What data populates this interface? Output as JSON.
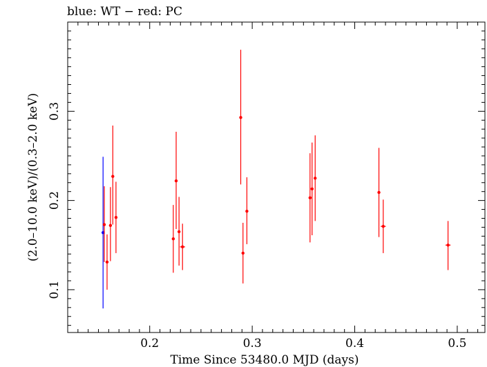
{
  "chart_data": {
    "type": "scatter",
    "title": "blue: WT − red: PC",
    "xlabel": "Time Since 53480.0 MJD (days)",
    "ylabel": "(2.0–10.0 keV)/(0.3–2.0 keV)",
    "xlim": [
      0.12,
      0.527
    ],
    "ylim": [
      0.052,
      0.4
    ],
    "xticks": [
      0.2,
      0.3,
      0.4,
      0.5
    ],
    "yticks": [
      0.1,
      0.2,
      0.3
    ],
    "xtick_labels": [
      "0.2",
      "0.3",
      "0.4",
      "0.5"
    ],
    "ytick_labels": [
      "0.1",
      "0.2",
      "0.3"
    ],
    "grid": false,
    "series": [
      {
        "name": "WT",
        "color": "#0000ff",
        "points": [
          {
            "x": 0.1545,
            "y": 0.164,
            "ylow": 0.079,
            "yhigh": 0.249,
            "xerr": 0.0004
          }
        ]
      },
      {
        "name": "PC",
        "color": "#ff0000",
        "points": [
          {
            "x": 0.1557,
            "y": 0.173,
            "ylow": 0.131,
            "yhigh": 0.216,
            "xerr": 0.0012
          },
          {
            "x": 0.1584,
            "y": 0.131,
            "ylow": 0.1,
            "yhigh": 0.162,
            "xerr": 0.0012
          },
          {
            "x": 0.1617,
            "y": 0.172,
            "ylow": 0.132,
            "yhigh": 0.215,
            "xerr": 0.0012
          },
          {
            "x": 0.164,
            "y": 0.227,
            "ylow": 0.173,
            "yhigh": 0.284,
            "xerr": 0.0012
          },
          {
            "x": 0.1671,
            "y": 0.181,
            "ylow": 0.141,
            "yhigh": 0.221,
            "xerr": 0.0012
          },
          {
            "x": 0.223,
            "y": 0.157,
            "ylow": 0.119,
            "yhigh": 0.195,
            "xerr": 0.0012
          },
          {
            "x": 0.2258,
            "y": 0.222,
            "ylow": 0.168,
            "yhigh": 0.277,
            "xerr": 0.0012
          },
          {
            "x": 0.2286,
            "y": 0.165,
            "ylow": 0.127,
            "yhigh": 0.204,
            "xerr": 0.0012
          },
          {
            "x": 0.232,
            "y": 0.148,
            "ylow": 0.122,
            "yhigh": 0.174,
            "xerr": 0.0025
          },
          {
            "x": 0.2888,
            "y": 0.293,
            "ylow": 0.218,
            "yhigh": 0.369,
            "xerr": 0.0012
          },
          {
            "x": 0.291,
            "y": 0.141,
            "ylow": 0.107,
            "yhigh": 0.175,
            "xerr": 0.0012
          },
          {
            "x": 0.2948,
            "y": 0.188,
            "ylow": 0.151,
            "yhigh": 0.226,
            "xerr": 0.0012
          },
          {
            "x": 0.3564,
            "y": 0.203,
            "ylow": 0.153,
            "yhigh": 0.253,
            "xerr": 0.0012
          },
          {
            "x": 0.3584,
            "y": 0.213,
            "ylow": 0.161,
            "yhigh": 0.265,
            "xerr": 0.0012
          },
          {
            "x": 0.3614,
            "y": 0.225,
            "ylow": 0.177,
            "yhigh": 0.273,
            "xerr": 0.0012
          },
          {
            "x": 0.4236,
            "y": 0.209,
            "ylow": 0.159,
            "yhigh": 0.259,
            "xerr": 0.0012
          },
          {
            "x": 0.4278,
            "y": 0.171,
            "ylow": 0.141,
            "yhigh": 0.201,
            "xerr": 0.0025
          },
          {
            "x": 0.491,
            "y": 0.15,
            "ylow": 0.122,
            "yhigh": 0.177,
            "xerr": 0.0025
          }
        ]
      }
    ]
  }
}
